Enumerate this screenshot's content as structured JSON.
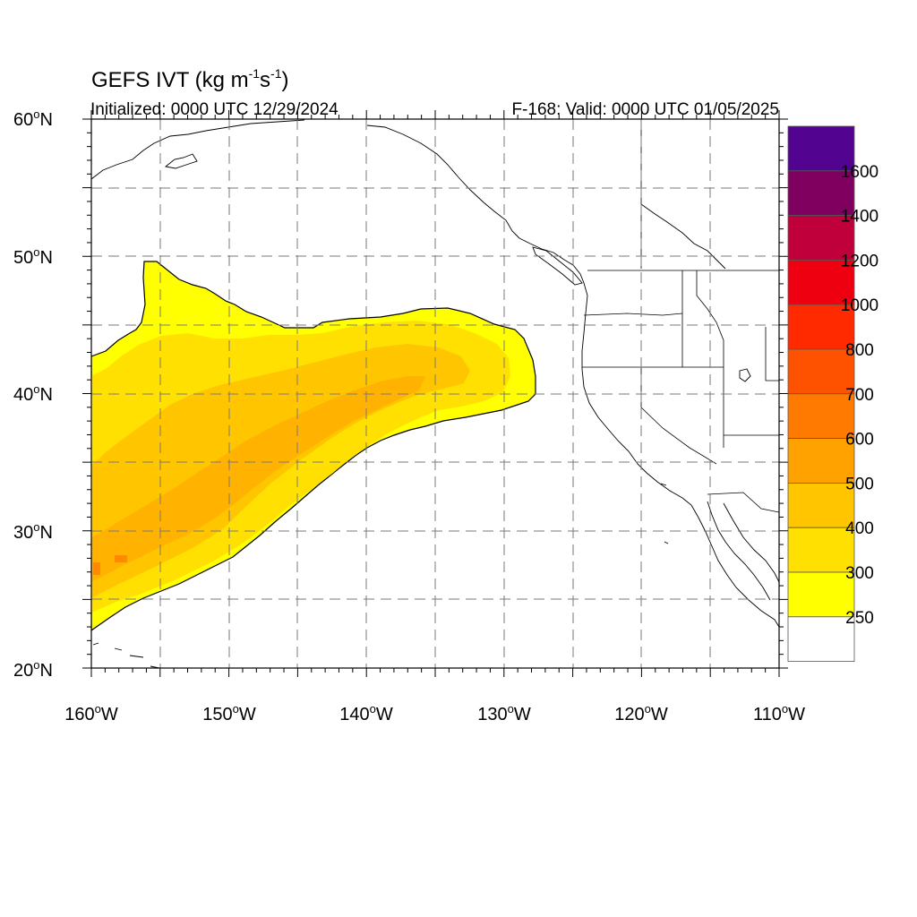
{
  "title": {
    "main": "GEFS IVT (kg m",
    "sup1": "-1",
    "mid": "s",
    "sup2": "-1",
    "end": ")"
  },
  "initialized": "Initialized: 0000 UTC 12/29/2024",
  "valid": "F-168: Valid: 0000 UTC 01/05/2025",
  "map": {
    "lon_range": [
      -160,
      -110
    ],
    "lat_range": [
      20,
      60
    ],
    "lat_labels": [
      {
        "num": "60",
        "deg": "o",
        "dir": "N"
      },
      {
        "num": "50",
        "deg": "o",
        "dir": "N"
      },
      {
        "num": "40",
        "deg": "o",
        "dir": "N"
      },
      {
        "num": "30",
        "deg": "o",
        "dir": "N"
      },
      {
        "num": "20",
        "deg": "o",
        "dir": "N"
      }
    ],
    "lon_labels": [
      {
        "num": "160",
        "deg": "o",
        "dir": "W"
      },
      {
        "num": "150",
        "deg": "o",
        "dir": "W"
      },
      {
        "num": "140",
        "deg": "o",
        "dir": "W"
      },
      {
        "num": "130",
        "deg": "o",
        "dir": "W"
      },
      {
        "num": "120",
        "deg": "o",
        "dir": "W"
      },
      {
        "num": "110",
        "deg": "o",
        "dir": "W"
      }
    ],
    "grid": "dashed every 5 degrees"
  },
  "colorbar": {
    "labels": [
      "1600",
      "1400",
      "1200",
      "1000",
      "800",
      "700",
      "600",
      "500",
      "400",
      "300",
      "250"
    ],
    "colors": [
      "#52038f",
      "#800060",
      "#c0003a",
      "#ee0010",
      "#ff2a00",
      "#ff5200",
      "#ff7a00",
      "#ffa200",
      "#ffc600",
      "#ffe000",
      "#ffff00",
      "#ffffff"
    ]
  },
  "ivt_field": {
    "description_levels": [
      "250-300",
      "300-400",
      "400-500"
    ],
    "level_colors": {
      "l250": "#ffff00",
      "l300": "#ffe000",
      "l400": "#ffc600",
      "l500": "#ffa200"
    }
  }
}
